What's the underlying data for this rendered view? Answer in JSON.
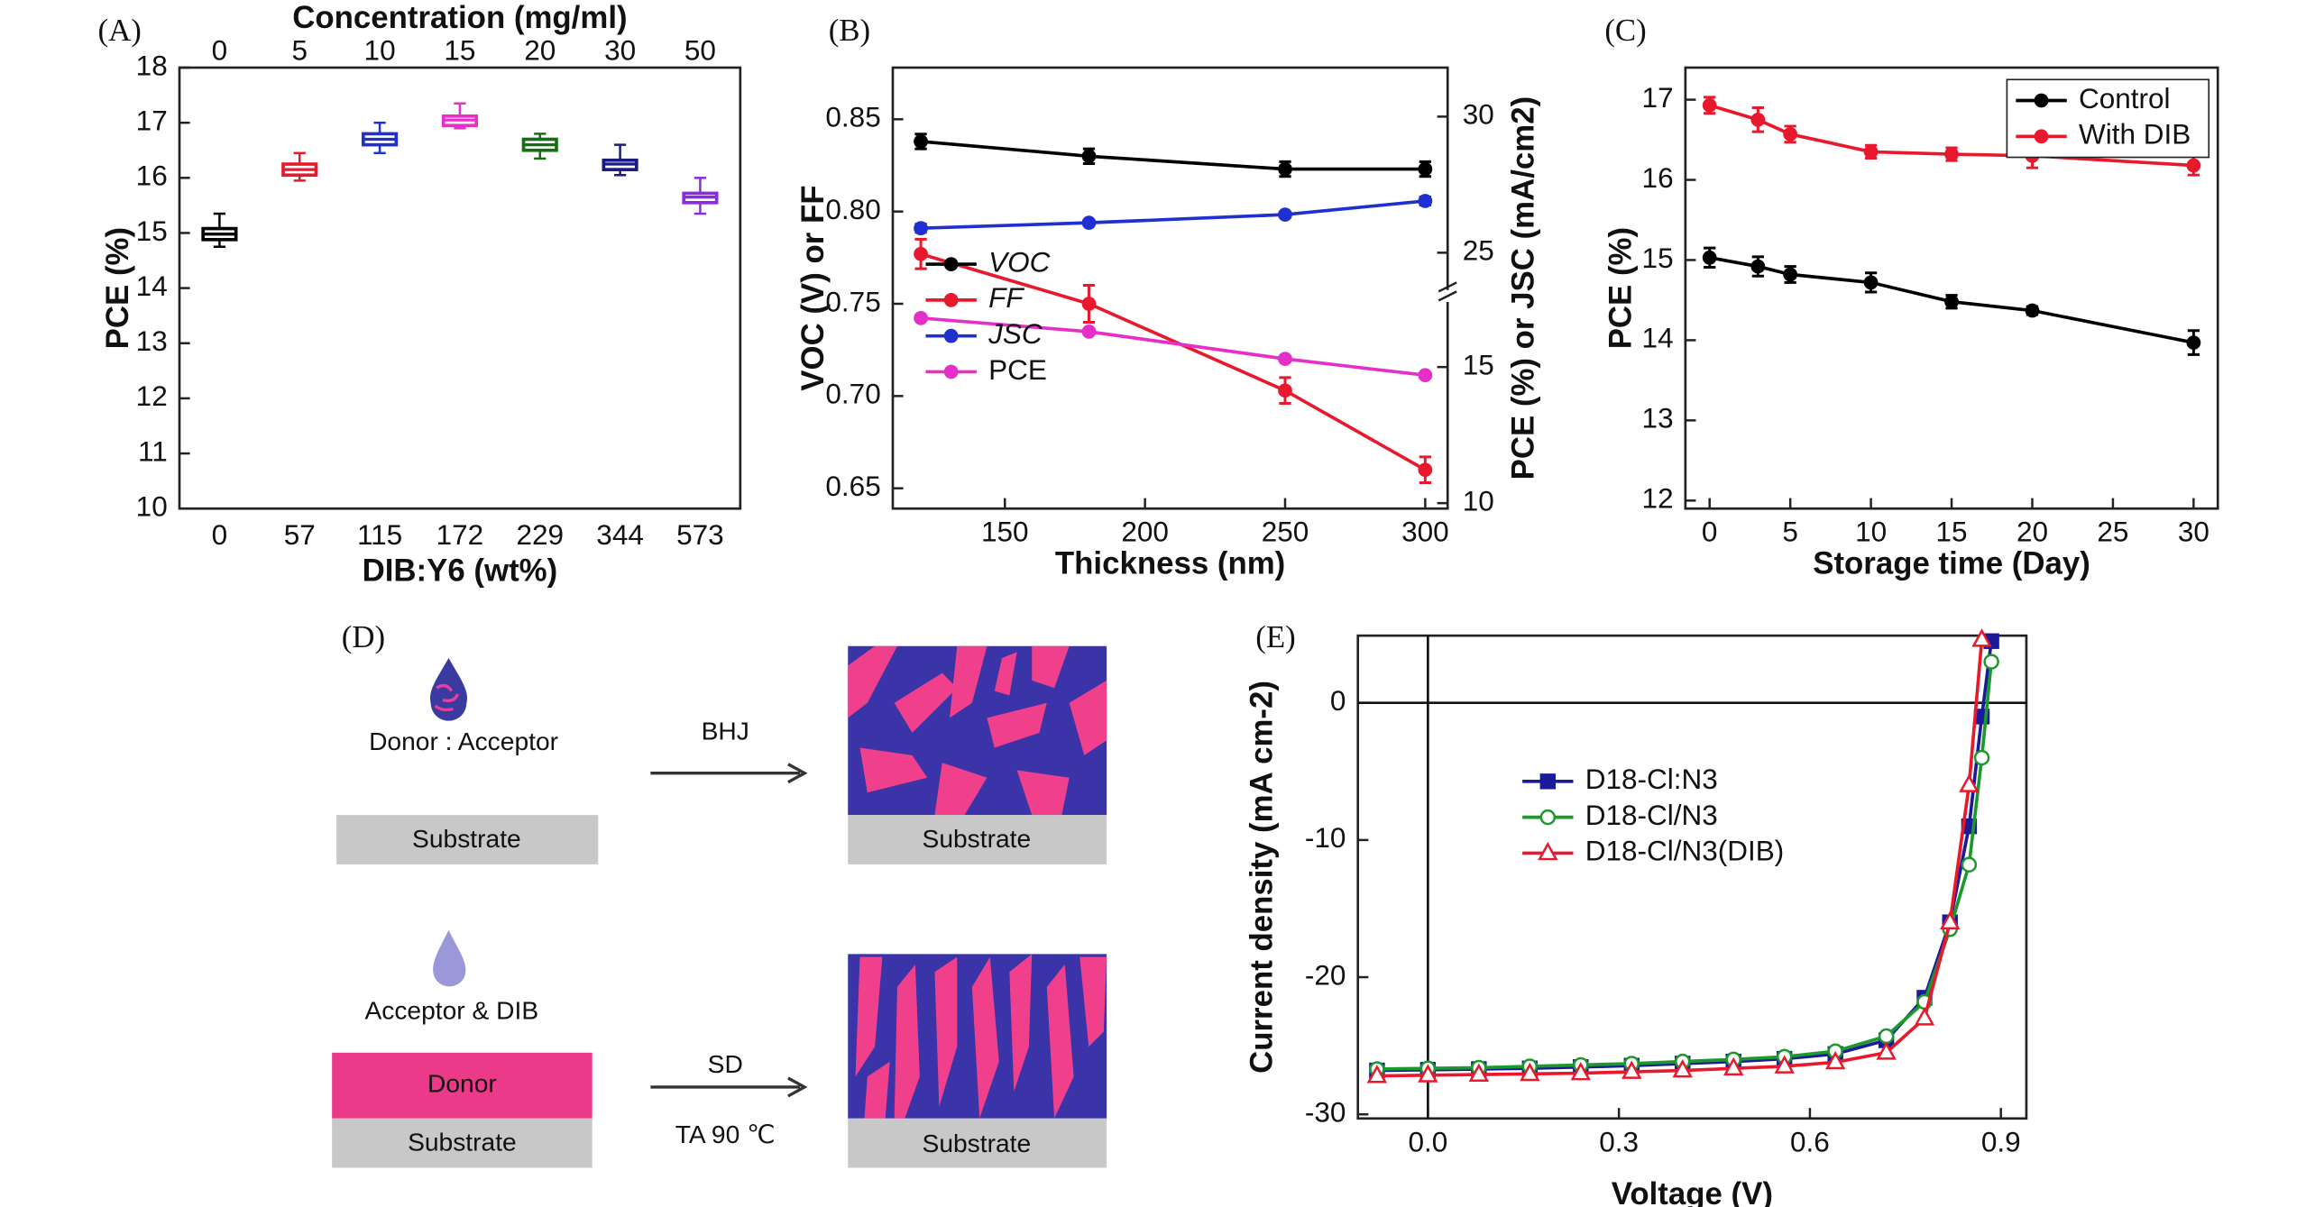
{
  "chart_data": [
    {
      "type": "box",
      "panel": "(A)",
      "title": "Concentration (mg/ml)",
      "top_categories": [
        "0",
        "5",
        "10",
        "15",
        "20",
        "30",
        "50"
      ],
      "categories": [
        "0",
        "57",
        "115",
        "172",
        "229",
        "344",
        "573"
      ],
      "xlabel": "DIB:Y6 (wt%)",
      "ylabel": "PCE (%)",
      "ylim": [
        10,
        18
      ],
      "yticks": [
        10,
        11,
        12,
        13,
        14,
        15,
        16,
        17,
        18
      ],
      "colors": [
        "#000000",
        "#e8192c",
        "#1f2fd0",
        "#e62ec8",
        "#127012",
        "#1a1a80",
        "#8a2be2"
      ],
      "min": [
        14.75,
        15.95,
        16.45,
        16.9,
        16.35,
        16.05,
        15.35
      ],
      "q1": [
        14.88,
        16.05,
        16.6,
        16.95,
        16.5,
        16.15,
        15.55
      ],
      "median": [
        14.98,
        16.15,
        16.7,
        17.05,
        16.6,
        16.25,
        15.65
      ],
      "q3": [
        15.08,
        16.25,
        16.8,
        17.12,
        16.7,
        16.32,
        15.72
      ],
      "max": [
        15.35,
        16.45,
        17.0,
        17.35,
        16.8,
        16.6,
        16.0
      ]
    },
    {
      "type": "line",
      "panel": "(B)",
      "xlabel": "Thickness (nm)",
      "ylabel": "VOC (V) or FF",
      "y2label": "PCE (%) or JSC (mA/cm2)",
      "x": [
        120,
        180,
        250,
        300
      ],
      "xlim": [
        110,
        308
      ],
      "xticks": [
        150,
        200,
        250,
        300
      ],
      "ylim": [
        0.639,
        0.878
      ],
      "yticks": [
        0.65,
        {
          "value": 0.7,
          "label": "0.70"
        },
        0.75,
        {
          "value": 0.8,
          "label": "0.80"
        },
        0.85
      ],
      "y2lim": [
        9.8,
        31.8
      ],
      "y2ticks": [
        10,
        15,
        25,
        30
      ],
      "y2break": [
        17.5,
        23.3
      ],
      "legend": "center left",
      "series": [
        {
          "name": "VOC",
          "color": "#000000",
          "marker": "circle",
          "values": [
            0.838,
            0.83,
            0.823,
            0.823
          ],
          "errors": [
            0.004,
            0.004,
            0.004,
            0.004
          ]
        },
        {
          "name": "FF",
          "color": "#e8192c",
          "marker": "circle",
          "values": [
            0.777,
            0.75,
            0.703,
            0.66
          ],
          "errors": [
            0.008,
            0.01,
            0.007,
            0.007
          ]
        },
        {
          "name": "JSC",
          "color": "#1f2fd0",
          "marker": "circle",
          "axis": "y2",
          "values": [
            25.9,
            26.1,
            26.4,
            26.9
          ],
          "errors": [
            0.15,
            0.1,
            0.1,
            0.15
          ]
        },
        {
          "name": "PCE",
          "color": "#e62ec8",
          "marker": "circle",
          "axis": "y2",
          "values": [
            16.8,
            16.3,
            15.3,
            14.7
          ],
          "errors": [
            0.1,
            0.1,
            0.1,
            0.1
          ]
        }
      ]
    },
    {
      "type": "line",
      "panel": "(C)",
      "xlabel": "Storage time (Day)",
      "ylabel": "PCE (%)",
      "x": [
        0,
        3,
        5,
        10,
        15,
        20,
        30
      ],
      "xlim": [
        -1.5,
        31.5
      ],
      "xticks": [
        0,
        5,
        10,
        15,
        20,
        25,
        30
      ],
      "ylim": [
        11.9,
        17.4
      ],
      "yticks": [
        12,
        13,
        14,
        15,
        16,
        17
      ],
      "legend": "upper right",
      "series": [
        {
          "name": "Control",
          "color": "#000000",
          "marker": "circle",
          "values": [
            15.03,
            14.92,
            14.82,
            14.72,
            14.48,
            14.37,
            13.97
          ],
          "errors": [
            0.12,
            0.12,
            0.1,
            0.12,
            0.08,
            0.05,
            0.15
          ]
        },
        {
          "name": "With DIB",
          "color": "#e8192c",
          "marker": "circle",
          "values": [
            16.93,
            16.75,
            16.57,
            16.35,
            16.32,
            16.3,
            16.18
          ],
          "errors": [
            0.1,
            0.15,
            0.1,
            0.08,
            0.08,
            0.15,
            0.12
          ]
        }
      ]
    },
    {
      "type": "line",
      "panel": "(E)",
      "xlabel": "Voltage (V)",
      "ylabel": "Current density (mA cm-2)",
      "x": [
        -0.08,
        0.0,
        0.08,
        0.16,
        0.24,
        0.32,
        0.4,
        0.48,
        0.56,
        0.64,
        0.72,
        0.78,
        0.82,
        0.85,
        0.87,
        0.885
      ],
      "xlim": [
        -0.11,
        0.94
      ],
      "xticks": [
        {
          "value": 0,
          "label": "0.0"
        },
        0.3,
        0.6,
        0.9
      ],
      "ylim": [
        -30.3,
        4.9
      ],
      "yticks": [
        -30,
        -20,
        -10,
        0
      ],
      "legend": "center left",
      "zero_lines": true,
      "series": [
        {
          "name": "D18-Cl:N3",
          "color": "#1a1a9a",
          "marker": "square",
          "values": [
            -26.8,
            -26.75,
            -26.7,
            -26.65,
            -26.55,
            -26.45,
            -26.3,
            -26.15,
            -25.95,
            -25.6,
            -24.6,
            -21.5,
            -16,
            -9,
            -1,
            4.5
          ]
        },
        {
          "name": "D18-Cl/N3",
          "color": "#1a9a2a",
          "marker": "circle-open",
          "values": [
            -26.7,
            -26.65,
            -26.6,
            -26.5,
            -26.4,
            -26.3,
            -26.15,
            -26.0,
            -25.8,
            -25.4,
            -24.3,
            -21.8,
            -16.5,
            -11.8,
            -4,
            3
          ]
        },
        {
          "name": "D18-Cl/N3(DIB)",
          "color": "#e8192c",
          "marker": "triangle-open",
          "values": [
            -27.2,
            -27.15,
            -27.1,
            -27.05,
            -27.0,
            -26.9,
            -26.8,
            -26.65,
            -26.5,
            -26.2,
            -25.5,
            -23,
            -16,
            -6,
            4.6,
            null
          ]
        }
      ]
    }
  ],
  "diagram": {
    "panel": "(D)",
    "top": {
      "drop_label": "Donor : Acceptor",
      "substrate": "Substrate",
      "arrow_label": "BHJ",
      "result_substrate": "Substrate"
    },
    "bottom": {
      "drop_label": "Acceptor & DIB",
      "donor": "Donor",
      "substrate": "Substrate",
      "arrow_label": "SD",
      "arrow_sublabel": "TA 90 ℃",
      "result_substrate": "Substrate"
    }
  }
}
